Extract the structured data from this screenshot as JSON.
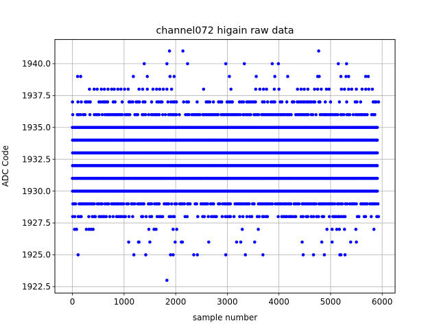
{
  "chart_data": {
    "type": "scatter",
    "title": "channel072 higain raw data",
    "xlabel": "sample number",
    "ylabel": "ADC Code",
    "xlim": [
      -340,
      6250
    ],
    "ylim": [
      1922.0,
      1941.9
    ],
    "xticks": [
      0,
      1000,
      2000,
      3000,
      4000,
      5000,
      6000
    ],
    "xtick_labels": [
      "0",
      "1000",
      "2000",
      "3000",
      "4000",
      "5000",
      "6000"
    ],
    "yticks": [
      1922.5,
      1925.0,
      1927.5,
      1930.0,
      1932.5,
      1935.0,
      1937.5,
      1940.0
    ],
    "ytick_labels": [
      "1922.5",
      "1925.0",
      "1927.5",
      "1930.0",
      "1932.5",
      "1935.0",
      "1937.5",
      "1940.0"
    ],
    "grid": true,
    "marker_color": "#0000ff",
    "sample_range": [
      0,
      5920
    ],
    "dense_levels": [
      1930,
      1931,
      1932,
      1933,
      1934,
      1935
    ],
    "semi_dense_levels": [
      1929,
      1936
    ],
    "medium_levels": [
      1928,
      1937
    ],
    "sparse_points": {
      "1938": [
        330,
        420,
        480,
        560,
        620,
        690,
        760,
        810,
        880,
        940,
        1010,
        1080,
        1290,
        1360,
        1450,
        1560,
        1630,
        1690,
        1760,
        1830,
        1920,
        2540,
        3070,
        3550,
        3630,
        3700,
        3760,
        3910,
        4000,
        4360,
        4430,
        4490,
        4560,
        4690,
        4750,
        4820,
        4920,
        4970,
        5210,
        5270,
        5350,
        5410,
        5500,
        5610,
        5680,
        5740,
        5810
      ],
      "1939": [
        100,
        160,
        1180,
        1450,
        1890,
        1970,
        3040,
        3560,
        3920,
        4170,
        4750,
        4780,
        5200,
        5300,
        5350,
        5680,
        5730
      ],
      "1940": [
        1390,
        1830,
        2230,
        2970,
        3330,
        3870,
        3990,
        5150,
        5310
      ],
      "1941": [
        1880,
        2140,
        4770
      ],
      "1927": [
        40,
        80,
        270,
        320,
        360,
        400,
        1480,
        1580,
        1620,
        1950,
        2020,
        3290,
        3600,
        4930,
        5030,
        5120,
        5170,
        5270,
        5490,
        5840
      ],
      "1926": [
        1090,
        1280,
        1290,
        1500,
        1990,
        2110,
        2130,
        2640,
        3180,
        3260,
        3530,
        4450,
        4830,
        5030,
        5390,
        5500
      ],
      "1925": [
        110,
        1190,
        1420,
        1900,
        1950,
        2350,
        2420,
        2970,
        3350,
        3690,
        4470,
        4670,
        4880,
        5180,
        5200,
        5280
      ],
      "1923": [
        1830
      ]
    }
  }
}
